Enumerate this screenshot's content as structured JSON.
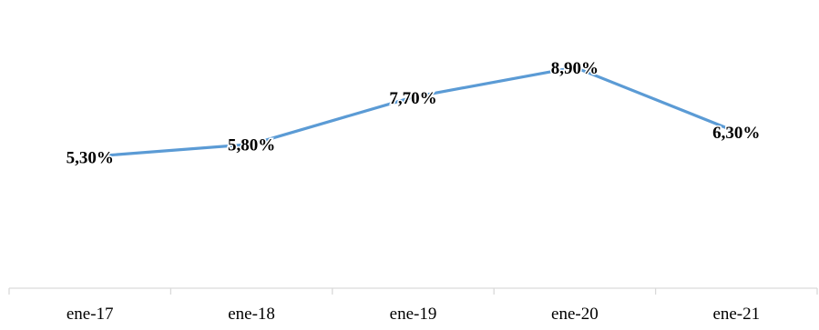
{
  "chart_data": {
    "type": "line",
    "categories": [
      "ene-17",
      "ene-18",
      "ene-19",
      "ene-20",
      "ene-21"
    ],
    "series": [
      {
        "values": [
          5.3,
          5.8,
          7.7,
          8.9,
          6.3
        ],
        "labels": [
          "5,30%",
          "5,80%",
          "7,70%",
          "8,90%",
          "6,30%"
        ],
        "color": "#5B9BD5"
      }
    ],
    "grid": false,
    "legend": "none",
    "axis_color": "#D9D9D9"
  }
}
